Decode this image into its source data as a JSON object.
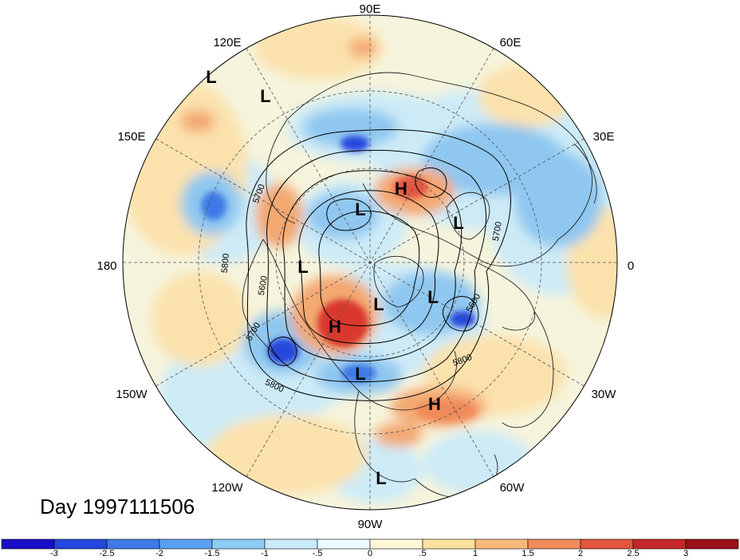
{
  "title": "Day 1997111506",
  "lon_labels": [
    "90E",
    "60E",
    "30E",
    "0",
    "30W",
    "60W",
    "90W",
    "120W",
    "150W",
    "180",
    "150E",
    "120E"
  ],
  "contour_labels": [
    "5700",
    "5800",
    "5600",
    "5700",
    "5600",
    "5800",
    "5700",
    "5800"
  ],
  "centers": [
    {
      "type": "L"
    },
    {
      "type": "L"
    },
    {
      "type": "H"
    },
    {
      "type": "L"
    },
    {
      "type": "L"
    },
    {
      "type": "L"
    },
    {
      "type": "L"
    },
    {
      "type": "L"
    },
    {
      "type": "H"
    },
    {
      "type": "L"
    },
    {
      "type": "H"
    },
    {
      "type": "L"
    }
  ],
  "colorbar": {
    "ticks": [
      "-3",
      "-2.5",
      "-2",
      "-1.5",
      "-1",
      "-.5",
      "0",
      ".5",
      "1",
      "1.5",
      "2",
      "2.5",
      "3"
    ],
    "colors": [
      "#1a0fc9",
      "#2546dc",
      "#3d7ae6",
      "#5aa0ef",
      "#8ecbf5",
      "#c9ebfa",
      "#eafaff",
      "#fff8d6",
      "#fbe1a0",
      "#f7b87a",
      "#f08a5a",
      "#e2553f",
      "#c52828",
      "#9b0f17"
    ]
  },
  "field_colors": {
    "ocean_base": "#f6f4dc",
    "negative_light": "#cdebf7",
    "negative_mid": "#8fc7f0",
    "negative_strong": "#3f74e0",
    "positive_light": "#fbe2ad",
    "positive_mid": "#f4a872",
    "positive_strong": "#d8392f"
  }
}
